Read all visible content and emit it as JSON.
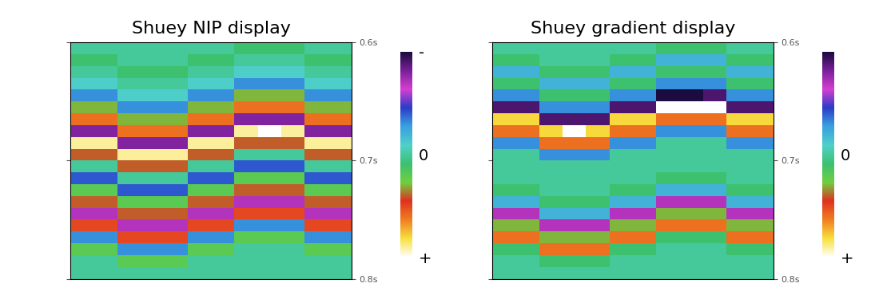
{
  "chart_data": [
    {
      "type": "heatmap",
      "title": "Shuey NIP display",
      "tick_labels": "y",
      "ylim": [
        0.6,
        0.8
      ],
      "yticks": [
        {
          "value": 0.6,
          "label": "0.6s"
        },
        {
          "value": 0.7,
          "label": "0.7s"
        },
        {
          "value": 0.8,
          "label": "0.8s"
        }
      ],
      "colorbar_range": [
        -1,
        1
      ],
      "colorbar_ticks": [
        {
          "value": -1,
          "label": "-"
        },
        {
          "value": 0,
          "label": "0"
        },
        {
          "value": 1,
          "label": "+"
        }
      ],
      "cells": [
        [
          0,
          0,
          0,
          0,
          0,
          0,
          0,
          0.1,
          0.1,
          0.1,
          0,
          0
        ],
        [
          0.1,
          0.1,
          0,
          0,
          0,
          0.1,
          0.1,
          0,
          0,
          0,
          0.1,
          0.1
        ],
        [
          0,
          0,
          0.1,
          0.1,
          0.1,
          0,
          0,
          -0.1,
          -0.1,
          -0.1,
          0,
          0
        ],
        [
          -0.1,
          -0.1,
          0,
          0,
          0,
          -0.1,
          -0.1,
          -0.3,
          -0.3,
          -0.3,
          -0.1,
          -0.1
        ],
        [
          -0.3,
          -0.3,
          -0.1,
          -0.1,
          -0.1,
          -0.3,
          -0.3,
          0.3,
          0.3,
          0.3,
          -0.3,
          -0.3
        ],
        [
          0.3,
          0.3,
          -0.3,
          -0.3,
          -0.3,
          0.3,
          0.3,
          0.6,
          0.6,
          0.6,
          0.3,
          0.3
        ],
        [
          0.6,
          0.6,
          0.3,
          0.3,
          0.3,
          0.6,
          0.6,
          -0.8,
          -0.8,
          -0.8,
          0.6,
          0.6
        ],
        [
          -0.8,
          -0.8,
          0.6,
          0.6,
          0.6,
          -0.8,
          -0.8,
          0.9,
          1.0,
          0.9,
          -0.8,
          -0.8
        ],
        [
          0.9,
          0.9,
          -0.8,
          -0.8,
          -0.8,
          0.9,
          0.9,
          0.4,
          0.4,
          0.4,
          0.9,
          0.9
        ],
        [
          0.4,
          0.4,
          0.9,
          0.9,
          0.9,
          0.4,
          0.4,
          0,
          0,
          0,
          0.4,
          0.4
        ],
        [
          0,
          0,
          0.4,
          0.4,
          0.4,
          0,
          0,
          -0.4,
          -0.4,
          -0.4,
          0,
          0
        ],
        [
          -0.4,
          -0.4,
          0,
          0,
          0,
          -0.4,
          -0.4,
          0.2,
          0.2,
          0.2,
          -0.4,
          -0.4
        ],
        [
          0.2,
          0.2,
          -0.4,
          -0.4,
          -0.4,
          0.2,
          0.2,
          0.4,
          0.4,
          0.4,
          0.2,
          0.2
        ],
        [
          0.4,
          0.4,
          0.2,
          0.2,
          0.2,
          0.4,
          0.4,
          -0.7,
          -0.7,
          -0.7,
          0.4,
          0.4
        ],
        [
          -0.7,
          -0.7,
          0.4,
          0.4,
          0.4,
          -0.7,
          -0.7,
          0.5,
          0.5,
          0.5,
          -0.7,
          -0.7
        ],
        [
          0.5,
          0.5,
          -0.7,
          -0.7,
          -0.7,
          0.5,
          0.5,
          -0.3,
          -0.3,
          -0.3,
          0.5,
          0.5
        ],
        [
          -0.3,
          -0.3,
          0.5,
          0.5,
          0.5,
          -0.3,
          -0.3,
          0.2,
          0.2,
          0.2,
          -0.3,
          -0.3
        ],
        [
          0.2,
          0.2,
          -0.3,
          -0.3,
          -0.3,
          0.2,
          0.2,
          0,
          0,
          0,
          0.2,
          0.2
        ],
        [
          0,
          0,
          0.2,
          0.2,
          0.2,
          0,
          0,
          0,
          0,
          0,
          0,
          0
        ],
        [
          0,
          0,
          0,
          0,
          0,
          0,
          0,
          0,
          0,
          0,
          0,
          0
        ]
      ]
    },
    {
      "type": "heatmap",
      "title": "Shuey gradient display",
      "tick_labels": "y",
      "ylim": [
        0.6,
        0.8
      ],
      "yticks": [
        {
          "value": 0.6,
          "label": "0.6s"
        },
        {
          "value": 0.7,
          "label": "0.7s"
        },
        {
          "value": 0.8,
          "label": "0.8s"
        }
      ],
      "colorbar_range": [
        -1,
        1
      ],
      "colorbar_ticks": [
        {
          "value": 0,
          "label": "0"
        },
        {
          "value": 1,
          "label": "+"
        }
      ],
      "cells": [
        [
          0,
          0,
          0,
          0,
          0,
          0,
          0,
          0.1,
          0.1,
          0.1,
          0,
          0
        ],
        [
          0.1,
          0.1,
          0,
          0,
          0,
          0.1,
          0.1,
          -0.2,
          -0.2,
          -0.2,
          0.1,
          0.1
        ],
        [
          -0.2,
          -0.2,
          0.1,
          0.1,
          0.1,
          -0.2,
          -0.2,
          0.1,
          0.1,
          0.1,
          -0.2,
          -0.2
        ],
        [
          0.1,
          0.1,
          -0.2,
          -0.2,
          -0.2,
          0.1,
          0.1,
          -0.3,
          -0.3,
          -0.3,
          0.1,
          0.1
        ],
        [
          -0.3,
          -0.3,
          0.1,
          0.1,
          0.1,
          -0.3,
          -0.3,
          -1.0,
          -1.0,
          -0.9,
          -0.3,
          -0.3
        ],
        [
          -0.9,
          -0.9,
          -0.3,
          -0.3,
          -0.3,
          -0.9,
          -0.9,
          1.0,
          1.0,
          1.0,
          -0.9,
          -0.9
        ],
        [
          0.8,
          0.8,
          -0.9,
          -0.9,
          -0.9,
          0.8,
          0.8,
          0.6,
          0.6,
          0.6,
          0.8,
          0.8
        ],
        [
          0.6,
          0.6,
          0.8,
          1.0,
          0.8,
          0.6,
          0.6,
          -0.3,
          -0.3,
          -0.3,
          0.6,
          0.6
        ],
        [
          -0.3,
          -0.3,
          0.6,
          0.6,
          0.6,
          -0.3,
          -0.3,
          0,
          0,
          0,
          -0.3,
          -0.3
        ],
        [
          0,
          0,
          -0.3,
          -0.3,
          -0.3,
          0,
          0,
          0,
          0,
          0,
          0,
          0
        ],
        [
          0,
          0,
          0,
          0,
          0,
          0,
          0,
          0,
          0,
          0,
          0,
          0
        ],
        [
          0,
          0,
          0,
          0,
          0,
          0,
          0,
          0.1,
          0.1,
          0.1,
          0,
          0
        ],
        [
          0.1,
          0.1,
          0,
          0,
          0,
          0.1,
          0.1,
          -0.2,
          -0.2,
          -0.2,
          0.1,
          0.1
        ],
        [
          -0.2,
          -0.2,
          0.1,
          0.1,
          0.1,
          -0.2,
          -0.2,
          -0.7,
          -0.7,
          -0.7,
          -0.2,
          -0.2
        ],
        [
          -0.7,
          -0.7,
          -0.2,
          -0.2,
          -0.2,
          -0.7,
          -0.7,
          0.3,
          0.3,
          0.3,
          -0.7,
          -0.7
        ],
        [
          0.3,
          0.3,
          -0.7,
          -0.7,
          -0.7,
          0.3,
          0.3,
          0.6,
          0.6,
          0.6,
          0.3,
          0.3
        ],
        [
          0.6,
          0.6,
          0.3,
          0.3,
          0.3,
          0.6,
          0.6,
          0.1,
          0.1,
          0.1,
          0.6,
          0.6
        ],
        [
          0.1,
          0.1,
          0.6,
          0.6,
          0.6,
          0.1,
          0.1,
          0,
          0,
          0,
          0.1,
          0.1
        ],
        [
          0,
          0,
          0.1,
          0.1,
          0.1,
          0,
          0,
          0,
          0,
          0,
          0,
          0
        ],
        [
          0,
          0,
          0,
          0,
          0,
          0,
          0,
          0,
          0,
          0,
          0,
          0
        ]
      ]
    }
  ]
}
